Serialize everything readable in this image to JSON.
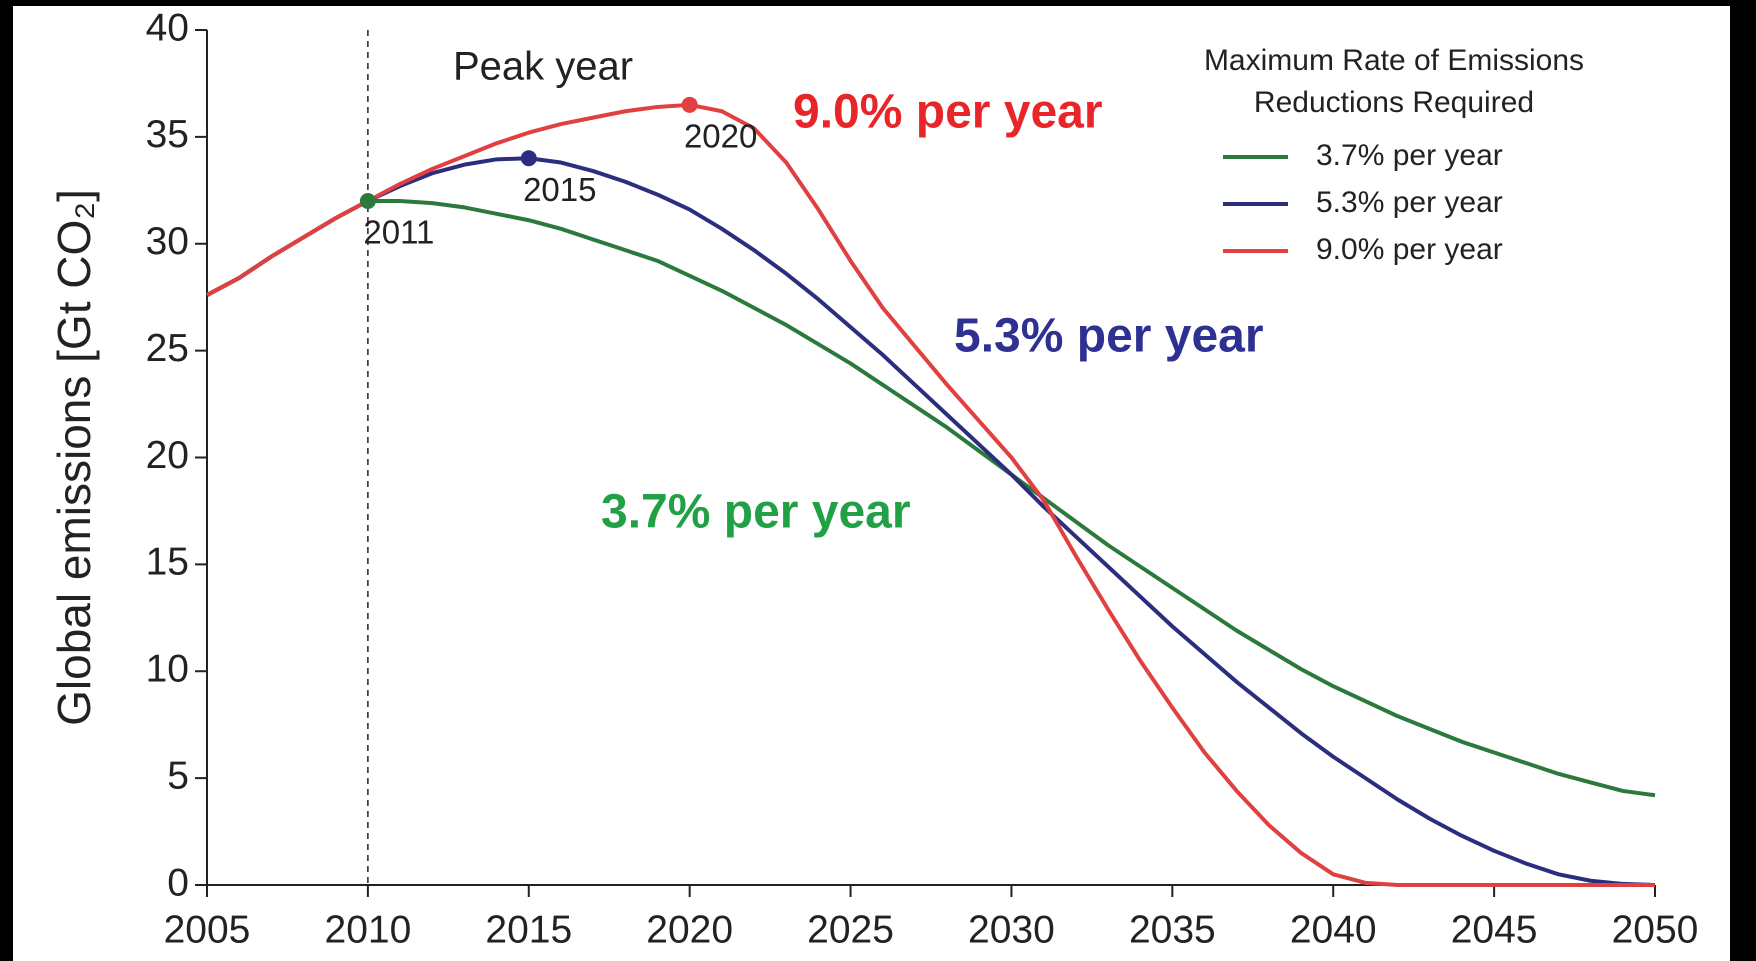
{
  "chart_data": {
    "type": "line",
    "ylabel": "Global emissions [Gt CO₂]",
    "x": [
      2005,
      2006,
      2007,
      2008,
      2009,
      2010,
      2011,
      2012,
      2013,
      2014,
      2015,
      2016,
      2017,
      2018,
      2019,
      2020,
      2021,
      2022,
      2023,
      2024,
      2025,
      2026,
      2027,
      2028,
      2029,
      2030,
      2031,
      2032,
      2033,
      2034,
      2035,
      2036,
      2037,
      2038,
      2039,
      2040,
      2041,
      2042,
      2043,
      2044,
      2045,
      2046,
      2047,
      2048,
      2049,
      2050
    ],
    "series": [
      {
        "name": "3.7% per year",
        "color": "#2b7a3c",
        "label_color": "#22a045",
        "peak_label": "2011",
        "values": [
          27.6,
          28.4,
          29.4,
          30.3,
          31.2,
          32.0,
          32.0,
          31.9,
          31.7,
          31.4,
          31.1,
          30.7,
          30.2,
          29.7,
          29.2,
          28.5,
          27.8,
          27.0,
          26.2,
          25.3,
          24.4,
          23.4,
          22.4,
          21.4,
          20.3,
          19.2,
          18.1,
          17.0,
          15.9,
          14.9,
          13.9,
          12.9,
          11.9,
          11.0,
          10.1,
          9.3,
          8.6,
          7.9,
          7.3,
          6.7,
          6.2,
          5.7,
          5.2,
          4.8,
          4.4,
          4.2
        ]
      },
      {
        "name": "5.3% per year",
        "color": "#2b2e7f",
        "label_color": "#2e3192",
        "peak_label": "2015",
        "values": [
          27.6,
          28.4,
          29.4,
          30.3,
          31.2,
          32.0,
          32.7,
          33.3,
          33.7,
          33.95,
          34.0,
          33.8,
          33.4,
          32.9,
          32.3,
          31.6,
          30.7,
          29.7,
          28.6,
          27.4,
          26.1,
          24.8,
          23.4,
          22.0,
          20.6,
          19.2,
          17.7,
          16.3,
          14.9,
          13.5,
          12.1,
          10.8,
          9.5,
          8.3,
          7.1,
          6.0,
          5.0,
          4.0,
          3.1,
          2.3,
          1.6,
          1.0,
          0.5,
          0.2,
          0.05,
          0
        ]
      },
      {
        "name": "9.0% per year",
        "color": "#e04040",
        "label_color": "#e8262a",
        "peak_label": "2020",
        "values": [
          27.6,
          28.4,
          29.4,
          30.3,
          31.2,
          32.0,
          32.8,
          33.5,
          34.1,
          34.7,
          35.2,
          35.6,
          35.9,
          36.2,
          36.4,
          36.5,
          36.2,
          35.4,
          33.8,
          31.6,
          29.2,
          27.0,
          25.2,
          23.4,
          21.7,
          20.0,
          18.0,
          15.4,
          12.9,
          10.5,
          8.3,
          6.2,
          4.4,
          2.8,
          1.5,
          0.5,
          0.1,
          0,
          0,
          0,
          0,
          0,
          0,
          0,
          0,
          0
        ]
      }
    ],
    "xlim": [
      2005,
      2050
    ],
    "xticks": [
      2005,
      2010,
      2015,
      2020,
      2025,
      2030,
      2035,
      2040,
      2045,
      2050
    ],
    "ylim": [
      0,
      40
    ],
    "yticks": [
      0,
      5,
      10,
      15,
      20,
      25,
      30,
      35,
      40
    ],
    "vline": 2010,
    "vline_label": "Peak year",
    "legend_title": [
      "Maximum Rate of Emissions",
      "Reductions Required"
    ],
    "legend": "upper right"
  }
}
